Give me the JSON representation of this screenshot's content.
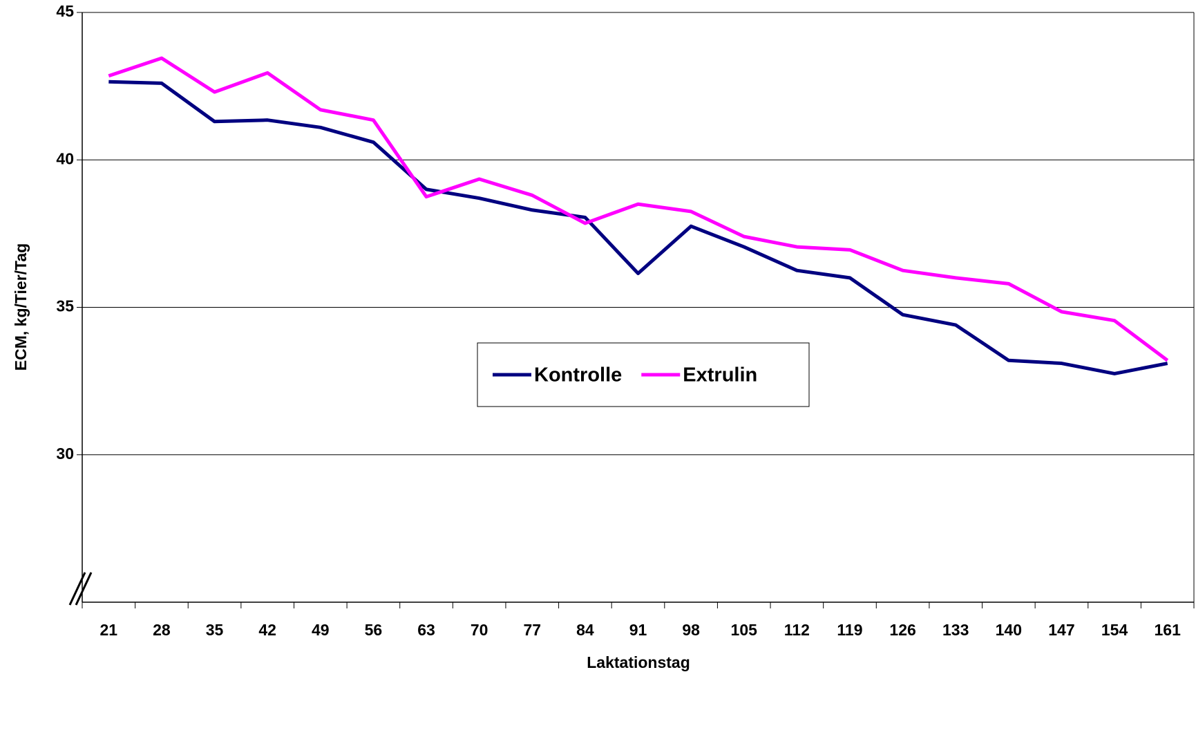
{
  "chart_data": {
    "type": "line",
    "x_label": "Laktationstag",
    "y_label": "ECM, kg/Tier/Tag",
    "categories": [
      "21",
      "28",
      "35",
      "42",
      "49",
      "56",
      "63",
      "70",
      "77",
      "84",
      "91",
      "98",
      "105",
      "112",
      "119",
      "126",
      "133",
      "140",
      "147",
      "154",
      "161"
    ],
    "series": [
      {
        "name": "Kontrolle",
        "color": "#000080",
        "values": [
          42.65,
          42.6,
          41.3,
          41.35,
          41.1,
          40.6,
          39.0,
          38.7,
          38.3,
          38.05,
          36.15,
          37.75,
          37.05,
          36.25,
          36.0,
          34.75,
          34.4,
          33.2,
          33.1,
          32.75,
          33.1
        ]
      },
      {
        "name": "Extrulin",
        "color": "#ff00ff",
        "values": [
          42.85,
          43.45,
          42.3,
          42.95,
          41.7,
          41.35,
          38.75,
          39.35,
          38.8,
          37.85,
          38.5,
          38.25,
          37.4,
          37.05,
          36.95,
          36.25,
          36.0,
          35.8,
          34.85,
          34.55,
          33.2
        ]
      }
    ],
    "ylim": [
      25,
      45
    ],
    "yticks": [
      30,
      35,
      40,
      45
    ],
    "grid": true,
    "legend": "center"
  }
}
